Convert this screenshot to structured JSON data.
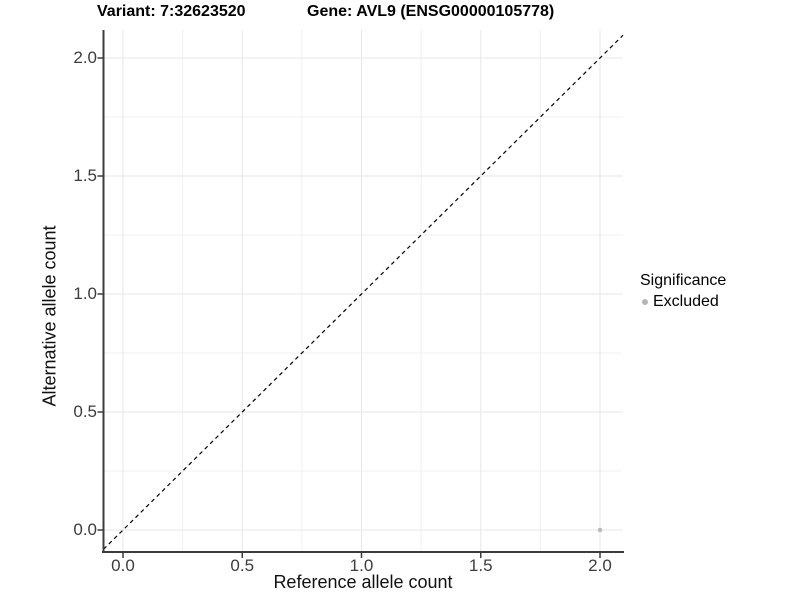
{
  "header": {
    "variant_title": "Variant: 7:32623520",
    "gene_title": "Gene: AVL9 (ENSG00000105778)"
  },
  "legend": {
    "title": "Significance",
    "items": [
      {
        "label": "Excluded",
        "color": "#b5b5b5"
      }
    ]
  },
  "chart_data": {
    "type": "scatter",
    "title_left": "Variant: 7:32623520",
    "title_right": "Gene: AVL9 (ENSG00000105778)",
    "xlabel": "Reference allele count",
    "ylabel": "Alternative allele count",
    "xlim": [
      -0.08,
      2.1
    ],
    "ylim": [
      -0.09,
      2.12
    ],
    "x_major_ticks": [
      0.0,
      0.5,
      1.0,
      1.5,
      2.0
    ],
    "x_tick_labels": [
      "0.0",
      "0.5",
      "1.0",
      "1.5",
      "2.0"
    ],
    "x_minor_ticks": [
      0.25,
      0.75,
      1.25,
      1.75
    ],
    "y_major_ticks": [
      0.0,
      0.5,
      1.0,
      1.5,
      2.0
    ],
    "y_tick_labels": [
      "0.0",
      "0.5",
      "1.0",
      "1.5",
      "2.0"
    ],
    "y_minor_ticks": [
      0.25,
      0.75,
      1.25,
      1.75
    ],
    "grid": "on",
    "legend_position": "right",
    "reference_line": {
      "type": "identity y=x",
      "style": "dashed",
      "color": "#000000"
    },
    "series": [
      {
        "name": "Excluded",
        "color": "#bcbcbc",
        "points": [
          {
            "x": 2.0,
            "y": 0.0
          }
        ]
      }
    ]
  },
  "colors": {
    "background": "#ffffff",
    "grid_major": "#e7e7e7",
    "grid_minor": "#f1f1f1",
    "axis_line": "#3c3c3c",
    "tick_mark": "#3c3c3c",
    "tick_label": "#3d3d3d",
    "point": "#bcbcbc",
    "identity_line": "#000000"
  }
}
